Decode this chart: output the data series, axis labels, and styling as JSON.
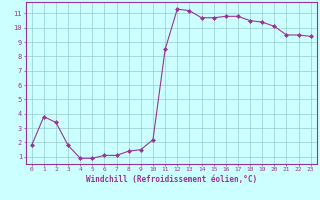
{
  "x": [
    0,
    1,
    2,
    3,
    4,
    5,
    6,
    7,
    8,
    9,
    10,
    11,
    12,
    13,
    14,
    15,
    16,
    17,
    18,
    19,
    20,
    21,
    22,
    23
  ],
  "y": [
    1.8,
    3.8,
    3.4,
    1.8,
    0.9,
    0.9,
    1.1,
    1.1,
    1.4,
    1.5,
    2.2,
    8.5,
    11.3,
    11.2,
    10.7,
    10.7,
    10.8,
    10.8,
    10.5,
    10.4,
    10.1,
    9.5,
    9.5,
    9.4
  ],
  "line_color": "#993399",
  "marker": "D",
  "marker_size": 2,
  "bg_color": "#ccffff",
  "grid_color": "#99cccc",
  "xlabel": "Windchill (Refroidissement éolien,°C)",
  "xlabel_color": "#993399",
  "ylabel_ticks": [
    1,
    2,
    3,
    4,
    5,
    6,
    7,
    8,
    9,
    10,
    11
  ],
  "xlim": [
    -0.5,
    23.5
  ],
  "ylim": [
    0.5,
    11.8
  ],
  "tick_color": "#993399",
  "spine_color": "#993399"
}
